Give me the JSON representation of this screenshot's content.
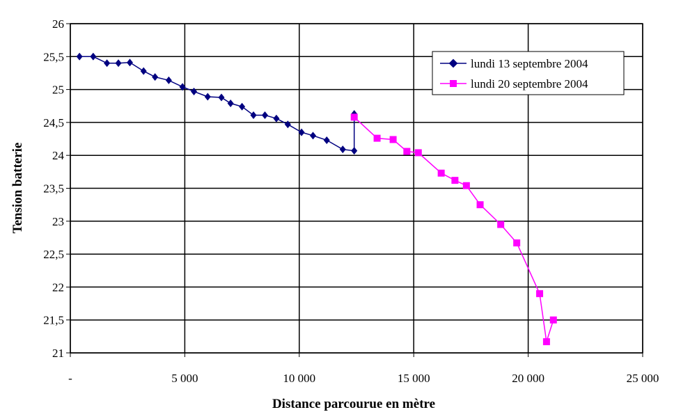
{
  "chart_data": {
    "type": "scatter",
    "title": "",
    "xlabel": "Distance parcourue en mètre",
    "ylabel": "Tension batterie",
    "xlim": [
      0,
      25000
    ],
    "ylim": [
      21,
      26
    ],
    "x_ticks": [
      0,
      5000,
      10000,
      15000,
      20000,
      25000
    ],
    "x_tick_labels": [
      "-",
      "5 000",
      "10 000",
      "15 000",
      "20 000",
      "25 000"
    ],
    "y_ticks": [
      21,
      21.5,
      22,
      22.5,
      23,
      23.5,
      24,
      24.5,
      25,
      25.5,
      26
    ],
    "y_tick_labels": [
      "21",
      "21,5",
      "22",
      "22,5",
      "23",
      "23,5",
      "24",
      "24,5",
      "25",
      "25,5",
      "26"
    ],
    "grid": true,
    "legend_position": "top-right",
    "series": [
      {
        "name": "lundi 13 septembre 2004",
        "color": "#000080",
        "marker": "diamond",
        "x": [
          400,
          1000,
          1600,
          2100,
          2600,
          3200,
          3700,
          4300,
          4900,
          5400,
          6000,
          6600,
          7000,
          7500,
          8000,
          8500,
          9000,
          9500,
          10100,
          10600,
          11200,
          11900,
          12400,
          12400
        ],
        "y": [
          25.5,
          25.5,
          25.4,
          25.4,
          25.41,
          25.28,
          25.19,
          25.14,
          25.04,
          24.97,
          24.89,
          24.88,
          24.79,
          24.74,
          24.61,
          24.61,
          24.56,
          24.47,
          24.35,
          24.3,
          24.23,
          24.09,
          24.07,
          24.63
        ]
      },
      {
        "name": "lundi 20 septembre 2004",
        "color": "#ff00ff",
        "marker": "square",
        "x": [
          12400,
          13400,
          14100,
          14700,
          15200,
          16200,
          16800,
          17300,
          17900,
          18800,
          19500,
          20500,
          20800,
          21100
        ],
        "y": [
          24.58,
          24.26,
          24.24,
          24.06,
          24.04,
          23.73,
          23.62,
          23.54,
          23.25,
          22.95,
          22.67,
          21.9,
          21.17,
          21.5
        ]
      }
    ]
  }
}
